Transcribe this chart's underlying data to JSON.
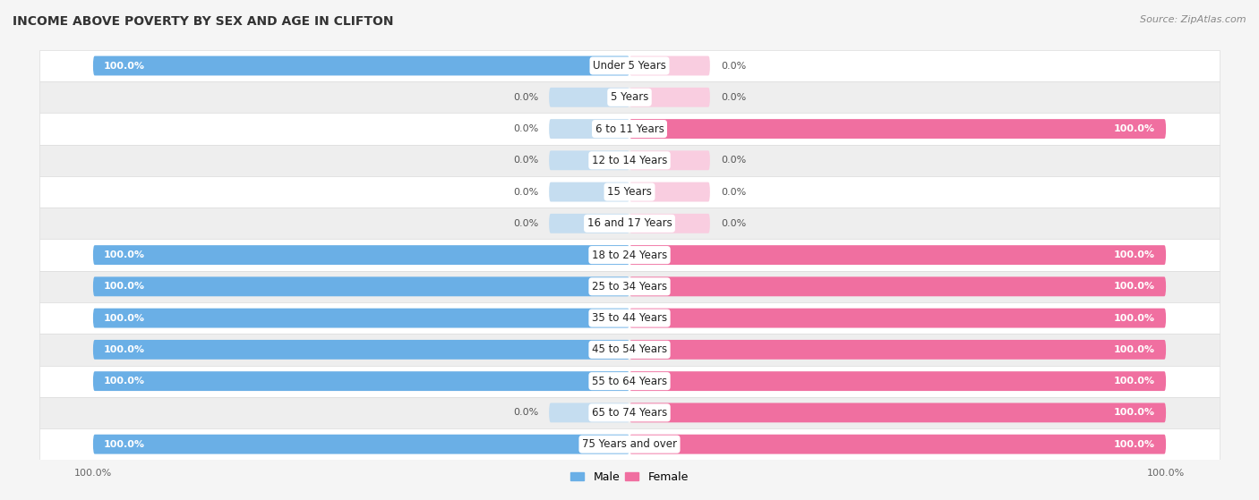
{
  "title": "INCOME ABOVE POVERTY BY SEX AND AGE IN CLIFTON",
  "source": "Source: ZipAtlas.com",
  "categories": [
    "Under 5 Years",
    "5 Years",
    "6 to 11 Years",
    "12 to 14 Years",
    "15 Years",
    "16 and 17 Years",
    "18 to 24 Years",
    "25 to 34 Years",
    "35 to 44 Years",
    "45 to 54 Years",
    "55 to 64 Years",
    "65 to 74 Years",
    "75 Years and over"
  ],
  "male": [
    100.0,
    0.0,
    0.0,
    0.0,
    0.0,
    0.0,
    100.0,
    100.0,
    100.0,
    100.0,
    100.0,
    0.0,
    100.0
  ],
  "female": [
    0.0,
    0.0,
    100.0,
    0.0,
    0.0,
    0.0,
    100.0,
    100.0,
    100.0,
    100.0,
    100.0,
    100.0,
    100.0
  ],
  "male_color": "#6aafe6",
  "female_color": "#f06fa0",
  "male_zero_color": "#c5ddf0",
  "female_zero_color": "#f9cde0",
  "row_colors": [
    "#ffffff",
    "#eeeeee"
  ],
  "title_fontsize": 10,
  "label_fontsize": 8.5,
  "bar_label_fontsize": 8,
  "legend_fontsize": 9,
  "source_fontsize": 8,
  "bg_color": "#f5f5f5"
}
